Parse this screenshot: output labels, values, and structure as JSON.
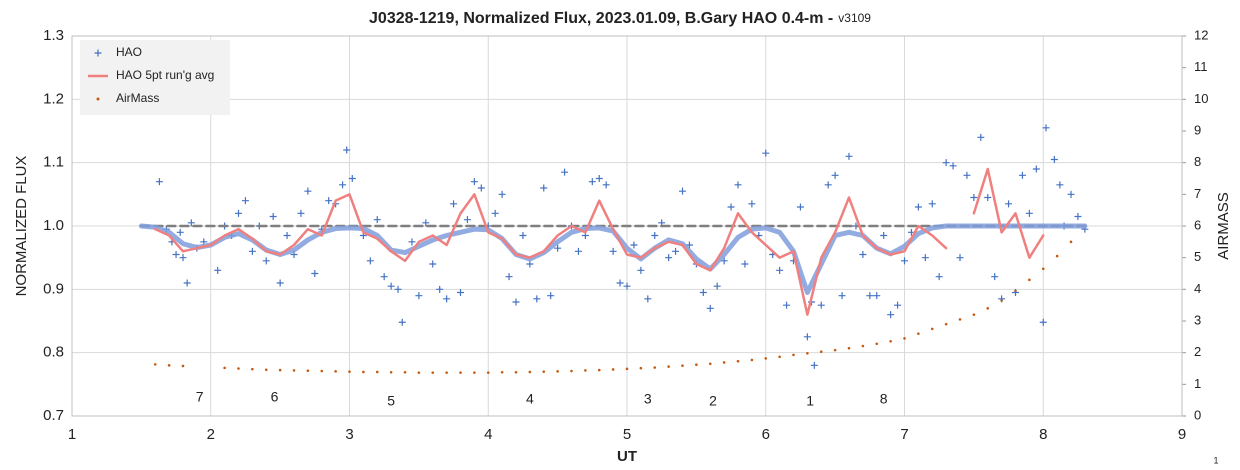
{
  "chart_data": {
    "type": "scatter",
    "title": "J0328-1219, Normalized Flux, 2023.01.09, B.Gary HAO 0.4-m -",
    "version": "v3109",
    "x_label": "UT",
    "y_label": "NORMALIZED FLUX",
    "y2_label": "AIRMASS",
    "xlim": [
      1,
      9
    ],
    "xticks": [
      1,
      2,
      3,
      4,
      5,
      6,
      7,
      8,
      9
    ],
    "ylim": [
      0.7,
      1.3
    ],
    "yticks": [
      0.7,
      0.8,
      0.9,
      {
        "value": 1,
        "label": "1.0"
      },
      1.1,
      1.2,
      1.3
    ],
    "y2lim": [
      0,
      12
    ],
    "y2ticks": [
      0,
      1,
      2,
      3,
      4,
      5,
      6,
      7,
      8,
      9,
      10,
      11,
      12
    ],
    "grid": true,
    "legend": "top-left",
    "annotations": [
      "7",
      "6",
      "5",
      "4",
      "3",
      "2",
      "1",
      "8"
    ],
    "footer": "1",
    "series": [
      {
        "name": "HAO",
        "color": "#4472c4",
        "mark": "plus",
        "x": [
          1.63,
          1.68,
          1.72,
          1.75,
          1.78,
          1.8,
          1.83,
          1.86,
          1.9,
          1.95,
          2.05,
          2.1,
          2.15,
          2.2,
          2.25,
          2.3,
          2.35,
          2.4,
          2.45,
          2.5,
          2.55,
          2.6,
          2.65,
          2.7,
          2.75,
          2.8,
          2.85,
          2.9,
          2.95,
          2.98,
          3.02,
          3.1,
          3.15,
          3.2,
          3.25,
          3.3,
          3.35,
          3.38,
          3.45,
          3.5,
          3.55,
          3.6,
          3.65,
          3.7,
          3.75,
          3.8,
          3.85,
          3.9,
          3.95,
          4.0,
          4.05,
          4.1,
          4.15,
          4.2,
          4.25,
          4.3,
          4.35,
          4.4,
          4.45,
          4.5,
          4.55,
          4.6,
          4.65,
          4.7,
          4.75,
          4.8,
          4.85,
          4.9,
          4.95,
          5.0,
          5.05,
          5.1,
          5.15,
          5.2,
          5.25,
          5.3,
          5.35,
          5.4,
          5.45,
          5.5,
          5.55,
          5.6,
          5.65,
          5.7,
          5.75,
          5.8,
          5.85,
          5.9,
          5.95,
          6.0,
          6.05,
          6.1,
          6.15,
          6.2,
          6.25,
          6.3,
          6.33,
          6.35,
          6.4,
          6.45,
          6.5,
          6.55,
          6.6,
          6.65,
          6.7,
          6.75,
          6.8,
          6.85,
          6.9,
          6.95,
          7.0,
          7.05,
          7.1,
          7.15,
          7.2,
          7.25,
          7.3,
          7.35,
          7.4,
          7.45,
          7.5,
          7.55,
          7.6,
          7.65,
          7.7,
          7.75,
          7.8,
          7.85,
          7.9,
          7.95,
          8.0,
          8.02,
          8.08,
          8.12,
          8.15,
          8.2,
          8.25,
          8.3
        ],
        "values": [
          1.07,
          0.995,
          0.975,
          0.955,
          0.99,
          0.95,
          0.91,
          1.005,
          0.965,
          0.975,
          0.93,
          1.0,
          0.985,
          1.02,
          1.04,
          0.96,
          1.0,
          0.945,
          1.015,
          0.91,
          0.985,
          0.955,
          1.02,
          1.055,
          0.925,
          0.995,
          1.04,
          1.035,
          1.065,
          1.12,
          1.075,
          0.985,
          0.945,
          1.01,
          0.92,
          0.905,
          0.9,
          0.848,
          0.975,
          0.89,
          1.005,
          0.94,
          0.9,
          0.885,
          1.035,
          0.895,
          1.01,
          1.07,
          1.06,
          1.0,
          1.02,
          1.05,
          0.92,
          0.88,
          0.985,
          0.94,
          0.885,
          1.06,
          0.89,
          0.965,
          1.085,
          1.0,
          0.96,
          0.985,
          1.07,
          1.075,
          1.065,
          0.96,
          0.91,
          0.905,
          0.97,
          0.93,
          0.885,
          0.985,
          1.005,
          0.95,
          0.96,
          1.055,
          0.97,
          0.94,
          0.895,
          0.87,
          0.905,
          0.945,
          1.03,
          1.065,
          0.94,
          1.035,
          0.985,
          1.115,
          0.955,
          0.93,
          0.875,
          0.945,
          1.03,
          0.825,
          0.88,
          0.78,
          0.875,
          1.065,
          1.08,
          0.89,
          1.11,
          1.0,
          0.955,
          0.89,
          0.89,
          0.985,
          0.86,
          0.875,
          0.945,
          0.99,
          1.03,
          0.95,
          1.035,
          0.92,
          1.1,
          1.095,
          0.95,
          1.08,
          1.045,
          1.14,
          1.045,
          0.92,
          0.885,
          1.035,
          0.895,
          1.08,
          1.02,
          1.09,
          0.848,
          1.155,
          1.105,
          1.065,
          1.0,
          1.05,
          1.015,
          0.995
        ]
      },
      {
        "name": "HAO 5pt run'g avg",
        "color": "#f08080",
        "mark": "line",
        "width": 2.5,
        "x": [
          1.6,
          1.7,
          1.8,
          1.9,
          2.0,
          2.1,
          2.2,
          2.3,
          2.4,
          2.5,
          2.6,
          2.7,
          2.8,
          2.9,
          3.0,
          3.1,
          3.2,
          3.3,
          3.4,
          3.5,
          3.6,
          3.7,
          3.8,
          3.9,
          4.0,
          4.1,
          4.2,
          4.3,
          4.4,
          4.5,
          4.6,
          4.7,
          4.8,
          4.9,
          5.0,
          5.1,
          5.2,
          5.3,
          5.4,
          5.5,
          5.6,
          5.7,
          5.8,
          5.9,
          6.0,
          6.1,
          6.2,
          6.3,
          6.4,
          6.5,
          6.6,
          6.7,
          6.8,
          6.9,
          7.0,
          7.1,
          7.2,
          7.3,
          7.4,
          7.5,
          7.6,
          7.7,
          7.8,
          7.9,
          8.0
        ],
        "values": [
          0.995,
          0.985,
          0.96,
          0.965,
          0.97,
          0.985,
          0.995,
          0.98,
          0.96,
          0.955,
          0.97,
          0.995,
          0.985,
          1.04,
          1.05,
          0.99,
          0.98,
          0.96,
          0.945,
          0.975,
          0.985,
          0.97,
          1.02,
          1.05,
          0.99,
          0.98,
          0.955,
          0.95,
          0.96,
          0.985,
          1.0,
          0.99,
          1.04,
          0.995,
          0.955,
          0.95,
          0.965,
          0.975,
          0.97,
          0.94,
          0.93,
          0.965,
          1.02,
          0.99,
          0.97,
          0.95,
          0.96,
          0.86,
          0.95,
          0.99,
          1.045,
          0.985,
          0.965,
          0.955,
          0.96,
          1.0,
          0.985,
          0.965,
          null,
          1.02,
          1.09,
          0.99,
          1.02,
          0.95,
          0.985
        ]
      },
      {
        "name": "AirMass",
        "color": "#c55a11",
        "mark": "dot",
        "axis": "y2",
        "x": [
          1.6,
          1.7,
          1.8,
          2.1,
          2.2,
          2.3,
          2.4,
          2.5,
          2.6,
          2.7,
          2.8,
          2.9,
          3.0,
          3.1,
          3.2,
          3.3,
          3.4,
          3.5,
          3.6,
          3.7,
          3.8,
          3.9,
          4.0,
          4.1,
          4.2,
          4.3,
          4.4,
          4.5,
          4.6,
          4.7,
          4.8,
          4.9,
          5.0,
          5.1,
          5.2,
          5.3,
          5.4,
          5.5,
          5.6,
          5.7,
          5.8,
          5.9,
          6.0,
          6.1,
          6.2,
          6.3,
          6.4,
          6.5,
          6.6,
          6.7,
          6.8,
          6.9,
          7.0,
          7.1,
          7.2,
          7.3,
          7.4,
          7.5,
          7.6,
          7.7,
          7.8,
          7.9,
          8.0,
          8.1,
          8.2,
          8.3
        ],
        "values": [
          1.63,
          1.6,
          1.58,
          1.52,
          1.5,
          1.48,
          1.46,
          1.45,
          1.44,
          1.43,
          1.42,
          1.41,
          1.4,
          1.39,
          1.39,
          1.38,
          1.38,
          1.37,
          1.37,
          1.37,
          1.37,
          1.37,
          1.37,
          1.38,
          1.38,
          1.39,
          1.4,
          1.41,
          1.42,
          1.44,
          1.45,
          1.47,
          1.49,
          1.51,
          1.53,
          1.56,
          1.59,
          1.62,
          1.65,
          1.69,
          1.73,
          1.77,
          1.82,
          1.87,
          1.93,
          1.98,
          2.03,
          2.08,
          2.14,
          2.21,
          2.28,
          2.36,
          2.45,
          2.6,
          2.75,
          2.9,
          3.05,
          3.2,
          3.4,
          3.65,
          3.95,
          4.3,
          4.65,
          5.05,
          5.5,
          6.0
        ]
      },
      {
        "color": "#7f9edc",
        "mark": "line",
        "width": 5,
        "opacity": 0.85,
        "x": [
          1.5,
          1.6,
          1.7,
          1.8,
          1.9,
          2.0,
          2.1,
          2.2,
          2.3,
          2.4,
          2.5,
          2.6,
          2.7,
          2.8,
          2.9,
          3.0,
          3.1,
          3.2,
          3.3,
          3.4,
          3.5,
          3.6,
          3.7,
          3.8,
          3.9,
          4.0,
          4.1,
          4.2,
          4.3,
          4.4,
          4.5,
          4.6,
          4.7,
          4.8,
          4.9,
          5.0,
          5.1,
          5.2,
          5.3,
          5.4,
          5.5,
          5.6,
          5.7,
          5.8,
          5.9,
          6.0,
          6.1,
          6.2,
          6.3,
          6.4,
          6.5,
          6.6,
          6.7,
          6.8,
          6.9,
          7.0,
          7.1,
          7.2,
          7.3,
          7.4,
          7.5,
          7.6,
          7.7,
          7.8,
          7.9,
          8.0,
          8.1,
          8.2,
          8.3
        ],
        "values": [
          1.0,
          0.998,
          0.99,
          0.972,
          0.966,
          0.97,
          0.982,
          0.988,
          0.978,
          0.962,
          0.955,
          0.962,
          0.978,
          0.99,
          0.996,
          0.997,
          0.996,
          0.985,
          0.962,
          0.958,
          0.968,
          0.978,
          0.985,
          0.99,
          0.995,
          0.994,
          0.98,
          0.955,
          0.948,
          0.958,
          0.975,
          0.99,
          0.996,
          0.997,
          0.992,
          0.965,
          0.948,
          0.965,
          0.978,
          0.972,
          0.948,
          0.932,
          0.955,
          0.982,
          0.995,
          0.997,
          0.99,
          0.96,
          0.895,
          0.94,
          0.985,
          0.99,
          0.985,
          0.965,
          0.956,
          0.968,
          0.988,
          0.997,
          1.0,
          1.0,
          1.0,
          1.0,
          1.0,
          1.0,
          1.0,
          1.0,
          1.0,
          1.0,
          1.0
        ]
      },
      {
        "color": "#7f7f7f",
        "mark": "line",
        "width": 2.5,
        "dash": true,
        "x": [
          1.5,
          8.3
        ],
        "values": [
          1.0,
          1.0
        ]
      }
    ]
  }
}
